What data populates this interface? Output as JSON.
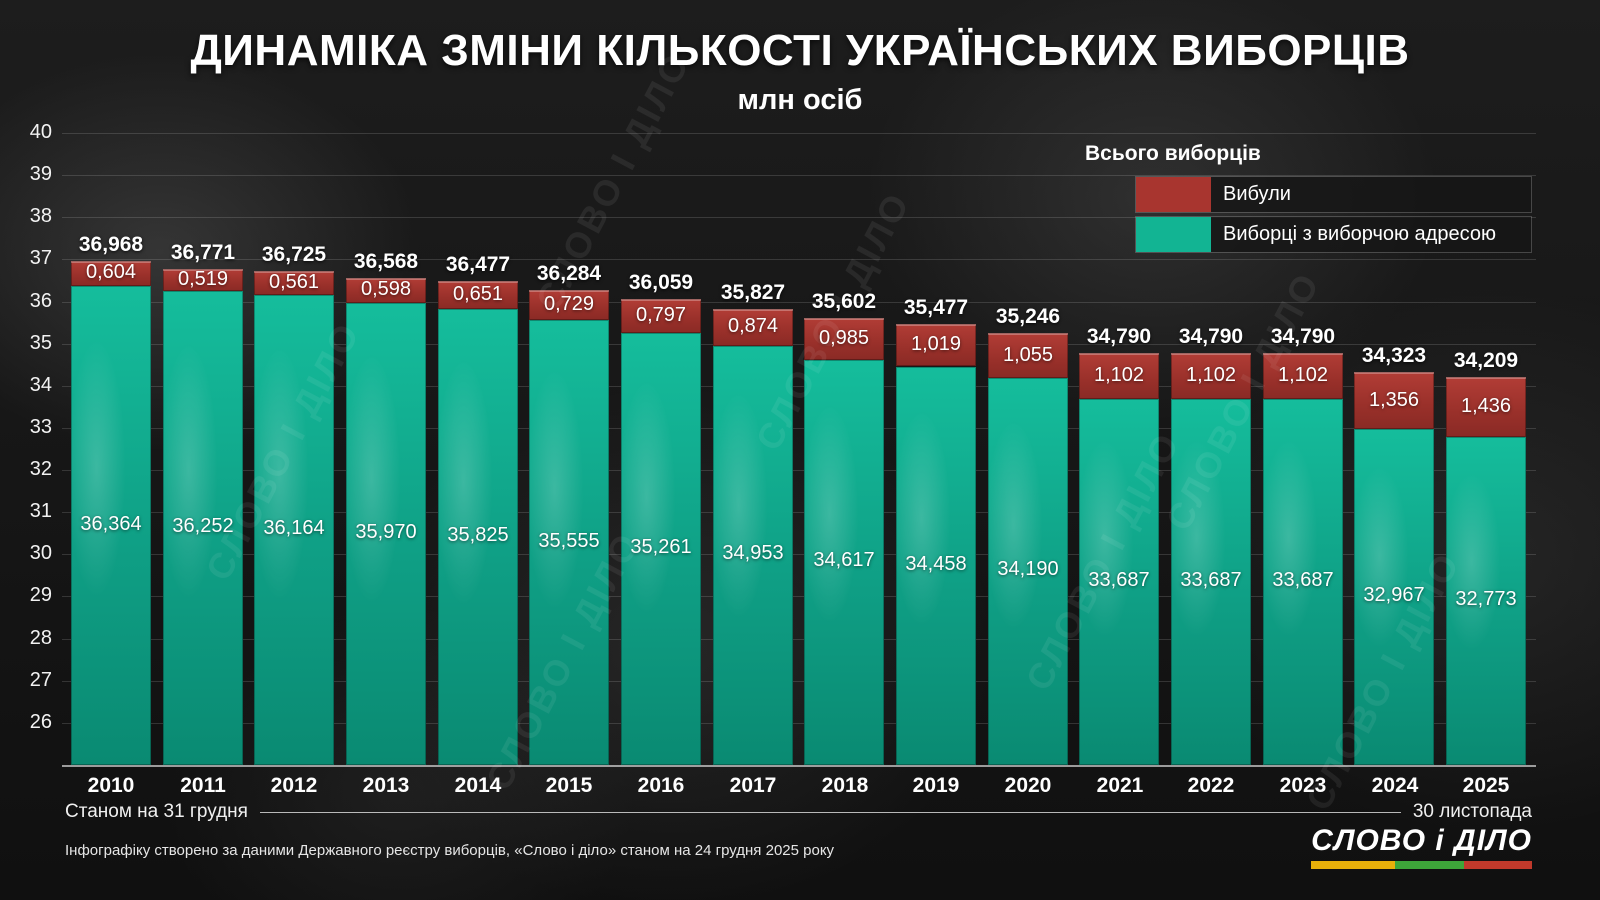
{
  "header": {
    "title": "ДИНАМІКА ЗМІНИ КІЛЬКОСТІ УКРАЇНСЬКИХ ВИБОРЦІВ",
    "subtitle": "млн осіб"
  },
  "watermark": "СЛОВО І ДІЛО",
  "legend": {
    "title": "Всього виборців",
    "items": [
      {
        "label": "Вибули",
        "color": "#a8352f"
      },
      {
        "label": "Виборці з виборчою адресою",
        "color": "#12b493"
      }
    ]
  },
  "footnotes": {
    "left_note": "Станом на 31 грудня",
    "right_note": "30 листопада",
    "source": "Інфографіку створено за даними Державного реєстру виборців, «Слово і діло» станом на 24 грудня 2025 року",
    "logo": "СЛОВО і ДІЛО"
  },
  "chart_data": {
    "type": "bar",
    "stacked": true,
    "title": "ДИНАМІКА ЗМІНИ КІЛЬКОСТІ УКРАЇНСЬКИХ ВИБОРЦІВ",
    "subtitle_unit": "млн осіб",
    "categories": [
      "2010",
      "2011",
      "2012",
      "2013",
      "2014",
      "2015",
      "2016",
      "2017",
      "2018",
      "2019",
      "2020",
      "2021",
      "2022",
      "2023",
      "2024",
      "2025"
    ],
    "series": [
      {
        "name": "Виборці з виборчою адресою",
        "color": "#12b493",
        "values": [
          36.364,
          36.252,
          36.164,
          35.97,
          35.825,
          35.555,
          35.261,
          34.953,
          34.617,
          34.458,
          34.19,
          33.687,
          33.687,
          33.687,
          32.967,
          32.773
        ],
        "labels": [
          "36,364",
          "36,252",
          "36,164",
          "35,970",
          "35,825",
          "35,555",
          "35,261",
          "34,953",
          "34,617",
          "34,458",
          "34,190",
          "33,687",
          "33,687",
          "33,687",
          "32,967",
          "32,773"
        ]
      },
      {
        "name": "Вибули",
        "color": "#a8352f",
        "values": [
          0.604,
          0.519,
          0.561,
          0.598,
          0.651,
          0.729,
          0.797,
          0.874,
          0.985,
          1.019,
          1.055,
          1.102,
          1.102,
          1.102,
          1.356,
          1.436
        ],
        "labels": [
          "0,604",
          "0,519",
          "0,561",
          "0,598",
          "0,651",
          "0,729",
          "0,797",
          "0,874",
          "0,985",
          "1,019",
          "1,055",
          "1,102",
          "1,102",
          "1,102",
          "1,356",
          "1,436"
        ]
      }
    ],
    "totals": {
      "values": [
        36.968,
        36.771,
        36.725,
        36.568,
        36.477,
        36.284,
        36.059,
        35.827,
        35.602,
        35.477,
        35.246,
        34.79,
        34.79,
        34.79,
        34.323,
        34.209
      ],
      "labels": [
        "36,968",
        "36,771",
        "36,725",
        "36,568",
        "36,477",
        "36,284",
        "36,059",
        "35,827",
        "35,602",
        "35,477",
        "35,246",
        "34,790",
        "34,790",
        "34,790",
        "34,323",
        "34,209"
      ]
    },
    "ylim": [
      25,
      40
    ],
    "yticks": [
      26,
      27,
      28,
      29,
      30,
      31,
      32,
      33,
      34,
      35,
      36,
      37,
      38,
      39,
      40
    ],
    "grid": true,
    "legend_position": "top-right"
  }
}
